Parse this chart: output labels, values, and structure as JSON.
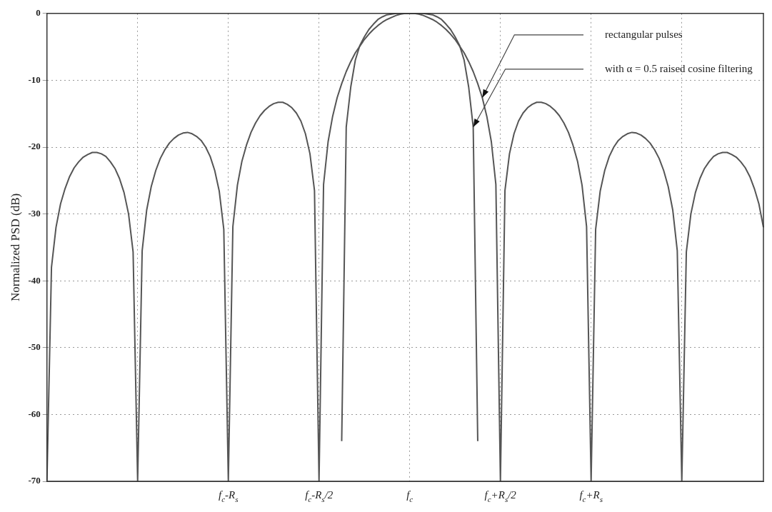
{
  "chart_data": {
    "type": "line",
    "ylabel": "Normalized PSD (dB)",
    "categories": [
      null,
      null,
      null,
      null,
      null,
      null,
      null,
      null,
      null,
      null,
      null,
      null,
      null,
      null,
      null,
      null,
      null,
      null,
      null,
      null,
      null,
      null,
      null,
      null,
      null,
      null,
      null,
      null,
      null,
      null,
      null,
      null,
      null,
      null,
      null,
      null,
      null,
      null,
      null,
      null,
      "f$_{c}$-R$_{s}$",
      null,
      null,
      null,
      null,
      null,
      null,
      null,
      null,
      null,
      null,
      null,
      null,
      null,
      null,
      null,
      null,
      null,
      null,
      null,
      "f$_{c}$-R$_{s}$/2",
      null,
      null,
      null,
      null,
      null,
      null,
      null,
      null,
      null,
      null,
      null,
      null,
      null,
      null,
      null,
      null,
      null,
      null,
      null,
      "f$_{c}$",
      null,
      null,
      null,
      null,
      null,
      null,
      null,
      null,
      null,
      null,
      null,
      null,
      null,
      null,
      null,
      null,
      null,
      null,
      null,
      "f$_{c}$+R$_{s}$/2",
      null,
      null,
      null,
      null,
      null,
      null,
      null,
      null,
      null,
      null,
      null,
      null,
      null,
      null,
      null,
      null,
      null,
      null,
      null,
      "f$_{c}$+R$_{s}$",
      null,
      null,
      null,
      null,
      null,
      null,
      null,
      null,
      null,
      null,
      null,
      null,
      null,
      null,
      null,
      null,
      null,
      null,
      null,
      null,
      null,
      null,
      null,
      null,
      null,
      null,
      null,
      null,
      null,
      null,
      null,
      null,
      null,
      null,
      null,
      null,
      null,
      null
    ],
    "ylim": [
      -70,
      0
    ],
    "yticks": [
      0,
      -10,
      -20,
      -30,
      -40,
      -50,
      -60,
      -70
    ],
    "grid": true,
    "legend": false,
    "marker": "none",
    "line_style": "solid",
    "series": [
      {
        "color": "#555555",
        "values": [
          -70,
          -38.0,
          -32.0,
          -28.5,
          -26.2,
          -24.4,
          -23.1,
          -22.2,
          -21.5,
          -21.1,
          -20.8,
          -20.8,
          -21.0,
          -21.4,
          -22.2,
          -23.2,
          -24.7,
          -26.8,
          -30.0,
          -35.7,
          -70,
          -35.5,
          -29.4,
          -25.9,
          -23.5,
          -21.7,
          -20.4,
          -19.4,
          -18.7,
          -18.2,
          -17.9,
          -17.8,
          -18.0,
          -18.4,
          -19.0,
          -20.0,
          -21.4,
          -23.5,
          -26.6,
          -32.3,
          -70,
          -31.9,
          -25.7,
          -22.1,
          -19.7,
          -17.8,
          -16.4,
          -15.3,
          -14.5,
          -13.9,
          -13.5,
          -13.3,
          -13.3,
          -13.6,
          -14.1,
          -14.9,
          -16.1,
          -18.0,
          -21.0,
          -26.5,
          -70,
          -25.6,
          -19.2,
          -15.4,
          -12.6,
          -10.5,
          -8.7,
          -7.2,
          -5.9,
          -4.9,
          -3.9,
          -3.1,
          -2.4,
          -1.8,
          -1.3,
          -0.9,
          -0.6,
          -0.3,
          -0.1,
          0,
          0,
          0,
          -0.1,
          -0.3,
          -0.6,
          -0.9,
          -1.3,
          -1.8,
          -2.4,
          -3.1,
          -3.9,
          -4.9,
          -5.9,
          -7.2,
          -8.7,
          -10.5,
          -12.6,
          -15.4,
          -19.2,
          -25.6,
          -70,
          -26.5,
          -21.0,
          -18.0,
          -16.1,
          -14.9,
          -14.1,
          -13.6,
          -13.3,
          -13.3,
          -13.5,
          -13.9,
          -14.5,
          -15.3,
          -16.4,
          -17.8,
          -19.7,
          -22.1,
          -25.7,
          -31.9,
          -70,
          -32.3,
          -26.6,
          -23.5,
          -21.4,
          -20.0,
          -19.0,
          -18.4,
          -18.0,
          -17.8,
          -17.9,
          -18.2,
          -18.7,
          -19.4,
          -20.4,
          -21.7,
          -23.5,
          -25.9,
          -29.4,
          -35.5,
          -70,
          -35.7,
          -30.0,
          -26.8,
          -24.7,
          -23.2,
          -22.2,
          -21.4,
          -21.0,
          -20.8,
          -20.8,
          -21.1,
          -21.5,
          -22.2,
          -23.1,
          -24.4,
          -26.2,
          -28.5,
          -32.0
        ]
      },
      {
        "color": "#555555",
        "values": [
          null,
          null,
          null,
          null,
          null,
          null,
          null,
          null,
          null,
          null,
          null,
          null,
          null,
          null,
          null,
          null,
          null,
          null,
          null,
          null,
          null,
          null,
          null,
          null,
          null,
          null,
          null,
          null,
          null,
          null,
          null,
          null,
          null,
          null,
          null,
          null,
          null,
          null,
          null,
          null,
          null,
          null,
          null,
          null,
          null,
          null,
          null,
          null,
          null,
          null,
          null,
          null,
          null,
          null,
          null,
          null,
          null,
          null,
          null,
          null,
          null,
          null,
          null,
          null,
          null,
          -64,
          -17,
          -11,
          -7,
          -4.8,
          -3.5,
          -2.4,
          -1.6,
          -0.9,
          -0.5,
          -0.2,
          -0.1,
          0,
          0,
          0,
          0,
          0,
          0,
          0,
          -0.1,
          -0.2,
          -0.5,
          -0.9,
          -1.6,
          -2.4,
          -3.5,
          -4.8,
          -7,
          -11,
          -17,
          -64,
          null,
          null,
          null,
          null,
          null,
          null,
          null,
          null,
          null,
          null,
          null,
          null,
          null,
          null,
          null,
          null,
          null,
          null,
          null,
          null,
          null,
          null,
          null,
          null,
          null,
          null,
          null,
          null,
          null,
          null,
          null,
          null,
          null,
          null,
          null,
          null,
          null,
          null,
          null,
          null,
          null,
          null,
          null,
          null,
          null,
          null,
          null,
          null,
          null,
          null,
          null,
          null,
          null,
          null,
          null,
          null,
          null,
          null,
          null,
          null,
          null,
          null,
          null
        ]
      }
    ],
    "annotations": [
      "rectangular pulses",
      "with α = 0.5 raised cosine filtering"
    ]
  }
}
